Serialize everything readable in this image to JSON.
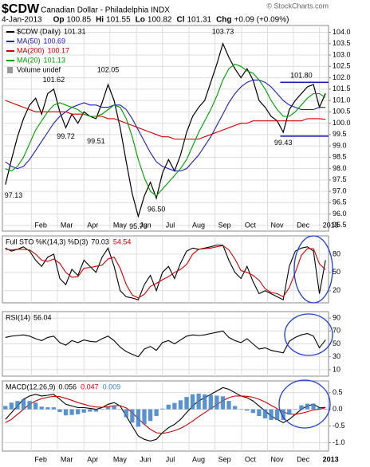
{
  "chart_data": [
    {
      "type": "line",
      "title": "$CDW",
      "subtitle": "Canadian Dollar - Philadelphia INDX",
      "source": "© StockCharts.com",
      "header": {
        "date": "4-Jan-2013",
        "fields": [
          {
            "label": "Op",
            "value": 100.85
          },
          {
            "label": "Hi",
            "value": 101.55
          },
          {
            "label": "Lo",
            "value": 100.82
          },
          {
            "label": "Cl",
            "value": 101.31
          },
          {
            "label": "Chg",
            "value": "+0.09 (+0.09%)"
          }
        ]
      },
      "x": [
        0,
        1,
        2,
        3,
        4,
        5,
        6,
        7,
        8,
        9,
        10,
        11,
        12,
        13,
        14,
        15,
        16,
        17,
        18,
        19,
        20,
        21,
        22,
        23,
        24,
        25,
        26,
        27,
        28,
        29,
        30,
        31,
        32,
        33,
        34,
        35,
        36,
        37,
        38,
        39,
        40,
        41,
        42,
        43,
        44,
        45,
        46,
        47,
        48,
        49,
        50,
        51,
        52,
        53
      ],
      "xlim": [
        -0.5,
        53.5
      ],
      "xticks": [
        {
          "value": 4.3,
          "label": "Feb"
        },
        {
          "value": 8.6,
          "label": "Mar"
        },
        {
          "value": 13,
          "label": "Apr"
        },
        {
          "value": 17.3,
          "label": "May"
        },
        {
          "value": 21.7,
          "label": "Jun"
        },
        {
          "value": 26,
          "label": "Jul"
        },
        {
          "value": 30.4,
          "label": "Aug"
        },
        {
          "value": 34.7,
          "label": "Sep"
        },
        {
          "value": 39.1,
          "label": "Oct"
        },
        {
          "value": 43.4,
          "label": "Nov"
        },
        {
          "value": 47.7,
          "label": "Dec"
        },
        {
          "value": 52,
          "label": "2013"
        }
      ],
      "ylim": [
        95.25,
        104.3
      ],
      "yticks": [
        95.5,
        {
          "value": 96,
          "label": "96.0"
        },
        96.5,
        {
          "value": 97,
          "label": "97.0"
        },
        97.5,
        {
          "value": 98,
          "label": "98.0"
        },
        98.5,
        {
          "value": 99,
          "label": "99.0"
        },
        99.5,
        {
          "value": 100,
          "label": "100.0"
        },
        100.5,
        {
          "value": 101,
          "label": "101.0"
        },
        101.5,
        {
          "value": 102,
          "label": "102.0"
        },
        102.5,
        {
          "value": 103,
          "label": "103.0"
        },
        103.5,
        {
          "value": 104,
          "label": "104.0"
        }
      ],
      "grid": true,
      "series": [
        {
          "name": "$CDW (Daily)",
          "color": "#000000",
          "values": [
            97.3,
            98.4,
            99.4,
            100.2,
            100.8,
            101.1,
            100.4,
            101.3,
            101.5,
            100.5,
            99.8,
            100.4,
            100.0,
            100.5,
            100.3,
            100.2,
            100.9,
            101.7,
            101.0,
            99.8,
            98.3,
            96.9,
            95.9,
            96.8,
            97.4,
            96.7,
            97.8,
            98.4,
            97.9,
            98.6,
            99.6,
            100.3,
            100.7,
            101.0,
            101.8,
            102.6,
            103.5,
            102.9,
            102.4,
            102.0,
            102.4,
            101.9,
            101.0,
            100.7,
            100.3,
            100.1,
            99.6,
            100.6,
            101.0,
            101.3,
            101.6,
            101.7,
            100.7,
            101.31
          ]
        },
        {
          "name": "MA(50)",
          "color": "#1c1cb4",
          "values": [
            98.3,
            98.1,
            98.0,
            98.1,
            98.4,
            98.8,
            99.2,
            99.6,
            100.0,
            100.3,
            100.5,
            100.7,
            100.8,
            100.9,
            100.8,
            100.8,
            100.7,
            100.7,
            100.8,
            100.8,
            100.6,
            100.2,
            99.7,
            99.2,
            98.7,
            98.3,
            98.1,
            98.0,
            97.9,
            97.9,
            98.0,
            98.3,
            98.6,
            99.0,
            99.4,
            99.9,
            100.4,
            100.9,
            101.3,
            101.6,
            101.8,
            101.9,
            101.9,
            101.8,
            101.6,
            101.3,
            101.0,
            100.8,
            100.7,
            100.6,
            100.6,
            100.6,
            100.7,
            100.69
          ]
        },
        {
          "name": "MA(200)",
          "color": "#cc0000",
          "values": [
            101.0,
            100.9,
            100.8,
            100.7,
            100.6,
            100.5,
            100.5,
            100.5,
            100.5,
            100.5,
            100.5,
            100.4,
            100.4,
            100.4,
            100.3,
            100.3,
            100.3,
            100.2,
            100.2,
            100.1,
            100.0,
            99.9,
            99.8,
            99.7,
            99.6,
            99.5,
            99.4,
            99.4,
            99.3,
            99.3,
            99.3,
            99.3,
            99.3,
            99.4,
            99.5,
            99.6,
            99.7,
            99.8,
            99.9,
            100.0,
            100.0,
            100.1,
            100.1,
            100.1,
            100.1,
            100.1,
            100.1,
            100.1,
            100.1,
            100.1,
            100.2,
            100.2,
            100.2,
            100.17
          ]
        },
        {
          "name": "MA(20)",
          "color": "#009a00",
          "values": [
            98.0,
            97.9,
            98.1,
            98.5,
            99.1,
            99.7,
            100.1,
            100.5,
            100.8,
            100.9,
            100.8,
            100.7,
            100.6,
            100.4,
            100.3,
            100.3,
            100.4,
            100.6,
            100.8,
            100.7,
            100.2,
            99.4,
            98.4,
            97.6,
            97.0,
            96.8,
            97.1,
            97.4,
            97.7,
            98.0,
            98.4,
            99.0,
            99.6,
            100.1,
            100.6,
            101.2,
            101.9,
            102.4,
            102.6,
            102.5,
            102.3,
            102.2,
            101.9,
            101.5,
            101.0,
            100.6,
            100.3,
            100.3,
            100.5,
            100.8,
            101.1,
            101.3,
            101.3,
            101.13
          ]
        }
      ],
      "volume_label": "Volume undef",
      "annotations": [
        {
          "x": 0,
          "value": 97.13,
          "label": "97.13"
        },
        {
          "x": 8,
          "value": 101.62,
          "label": "101.62"
        },
        {
          "x": 10,
          "value": 99.72,
          "label": "99.72"
        },
        {
          "x": 17,
          "value": 102.05,
          "label": "102.05"
        },
        {
          "x": 15,
          "value": 99.51,
          "label": "99.51"
        },
        {
          "x": 22,
          "value": 95.76,
          "label": "95.76"
        },
        {
          "x": 25,
          "value": 96.5,
          "label": "96.50"
        },
        {
          "x": 36,
          "value": 103.73,
          "label": "103.73"
        },
        {
          "x": 49,
          "value": 101.8,
          "label": "101.80"
        },
        {
          "x": 46,
          "value": 99.43,
          "label": "99.43"
        }
      ],
      "hlines": {
        "color": "#1c1cb4",
        "values": [
          101.8,
          99.43
        ]
      }
    },
    {
      "type": "line",
      "title": "Full STO %K(14,3) %D(3)",
      "ylim": [
        0,
        110
      ],
      "yticks": [
        20,
        50,
        80
      ],
      "grid": true,
      "series": [
        {
          "color": "#000000",
          "values": [
            90,
            85,
            88,
            92,
            85,
            70,
            60,
            75,
            80,
            40,
            30,
            55,
            45,
            70,
            60,
            50,
            75,
            90,
            60,
            20,
            10,
            8,
            5,
            30,
            45,
            20,
            50,
            60,
            40,
            65,
            85,
            90,
            88,
            90,
            92,
            95,
            95,
            70,
            50,
            40,
            60,
            35,
            15,
            20,
            15,
            10,
            5,
            60,
            85,
            90,
            92,
            85,
            15,
            70.03
          ]
        },
        {
          "color": "#cc0000",
          "values": [
            88,
            87,
            88,
            88,
            87,
            80,
            70,
            68,
            72,
            65,
            50,
            42,
            43,
            57,
            58,
            60,
            62,
            72,
            75,
            57,
            30,
            13,
            8,
            14,
            27,
            32,
            38,
            43,
            50,
            55,
            63,
            80,
            88,
            89,
            90,
            92,
            94,
            87,
            72,
            53,
            50,
            45,
            37,
            23,
            17,
            15,
            10,
            25,
            50,
            78,
            89,
            89,
            64,
            54.54
          ]
        }
      ]
    },
    {
      "type": "line",
      "title": "RSI(14)",
      "ylim": [
        0,
        100
      ],
      "yticks": [
        10,
        30,
        50,
        70,
        90
      ],
      "grid": true,
      "series": [
        {
          "color": "#000000",
          "values": [
            60,
            62,
            63,
            64,
            62,
            58,
            55,
            60,
            62,
            52,
            48,
            55,
            52,
            56,
            54,
            53,
            58,
            62,
            55,
            45,
            38,
            34,
            30,
            42,
            46,
            40,
            52,
            55,
            50,
            56,
            62,
            64,
            63,
            64,
            66,
            68,
            70,
            60,
            55,
            52,
            58,
            50,
            42,
            44,
            40,
            38,
            36,
            54,
            60,
            64,
            66,
            62,
            44,
            56.04
          ]
        }
      ]
    },
    {
      "type": "line",
      "title": "MACD(12,26,9)",
      "ylim": [
        -1.25,
        0.85
      ],
      "yticks": [
        0.5,
        {
          "value": 0,
          "label": "0.0"
        },
        -0.5,
        {
          "value": -1,
          "label": "-1.0"
        }
      ],
      "grid": true,
      "series": [
        {
          "color": "#000000",
          "values": [
            -0.3,
            -0.1,
            0.1,
            0.3,
            0.4,
            0.45,
            0.4,
            0.42,
            0.45,
            0.3,
            0.15,
            0.1,
            0.05,
            0.05,
            0.03,
            0.0,
            0.05,
            0.15,
            0.2,
            0.1,
            -0.2,
            -0.5,
            -0.8,
            -0.9,
            -0.95,
            -0.9,
            -0.7,
            -0.55,
            -0.45,
            -0.3,
            -0.1,
            0.1,
            0.25,
            0.35,
            0.45,
            0.55,
            0.65,
            0.6,
            0.5,
            0.4,
            0.35,
            0.25,
            0.1,
            -0.05,
            -0.2,
            -0.3,
            -0.4,
            -0.3,
            -0.15,
            0.0,
            0.1,
            0.15,
            0.05,
            0.056
          ]
        },
        {
          "color": "#cc0000",
          "values": [
            -0.4,
            -0.3,
            -0.15,
            0.0,
            0.15,
            0.25,
            0.32,
            0.36,
            0.39,
            0.38,
            0.33,
            0.27,
            0.2,
            0.15,
            0.1,
            0.07,
            0.06,
            0.08,
            0.11,
            0.11,
            0.04,
            -0.1,
            -0.28,
            -0.45,
            -0.6,
            -0.7,
            -0.72,
            -0.69,
            -0.64,
            -0.57,
            -0.47,
            -0.35,
            -0.22,
            -0.1,
            0.02,
            0.14,
            0.26,
            0.35,
            0.4,
            0.4,
            0.39,
            0.36,
            0.3,
            0.22,
            0.12,
            0.02,
            -0.08,
            -0.14,
            -0.15,
            -0.12,
            -0.07,
            -0.02,
            0.0,
            0.047
          ]
        },
        {
          "type": "bar",
          "color": "#3d7fc7",
          "values": [
            0.1,
            0.2,
            0.25,
            0.3,
            0.25,
            0.2,
            0.08,
            0.06,
            0.06,
            -0.08,
            -0.18,
            -0.17,
            -0.15,
            -0.1,
            -0.07,
            -0.07,
            -0.01,
            0.07,
            0.09,
            -0.01,
            -0.24,
            -0.4,
            -0.52,
            -0.45,
            -0.35,
            -0.2,
            0.02,
            0.14,
            0.19,
            0.27,
            0.37,
            0.45,
            0.47,
            0.45,
            0.43,
            0.41,
            0.39,
            0.25,
            0.1,
            0.0,
            -0.04,
            -0.11,
            -0.2,
            -0.27,
            -0.32,
            -0.32,
            -0.32,
            -0.16,
            0.0,
            0.12,
            0.17,
            0.17,
            0.05,
            0.009
          ]
        }
      ]
    }
  ]
}
